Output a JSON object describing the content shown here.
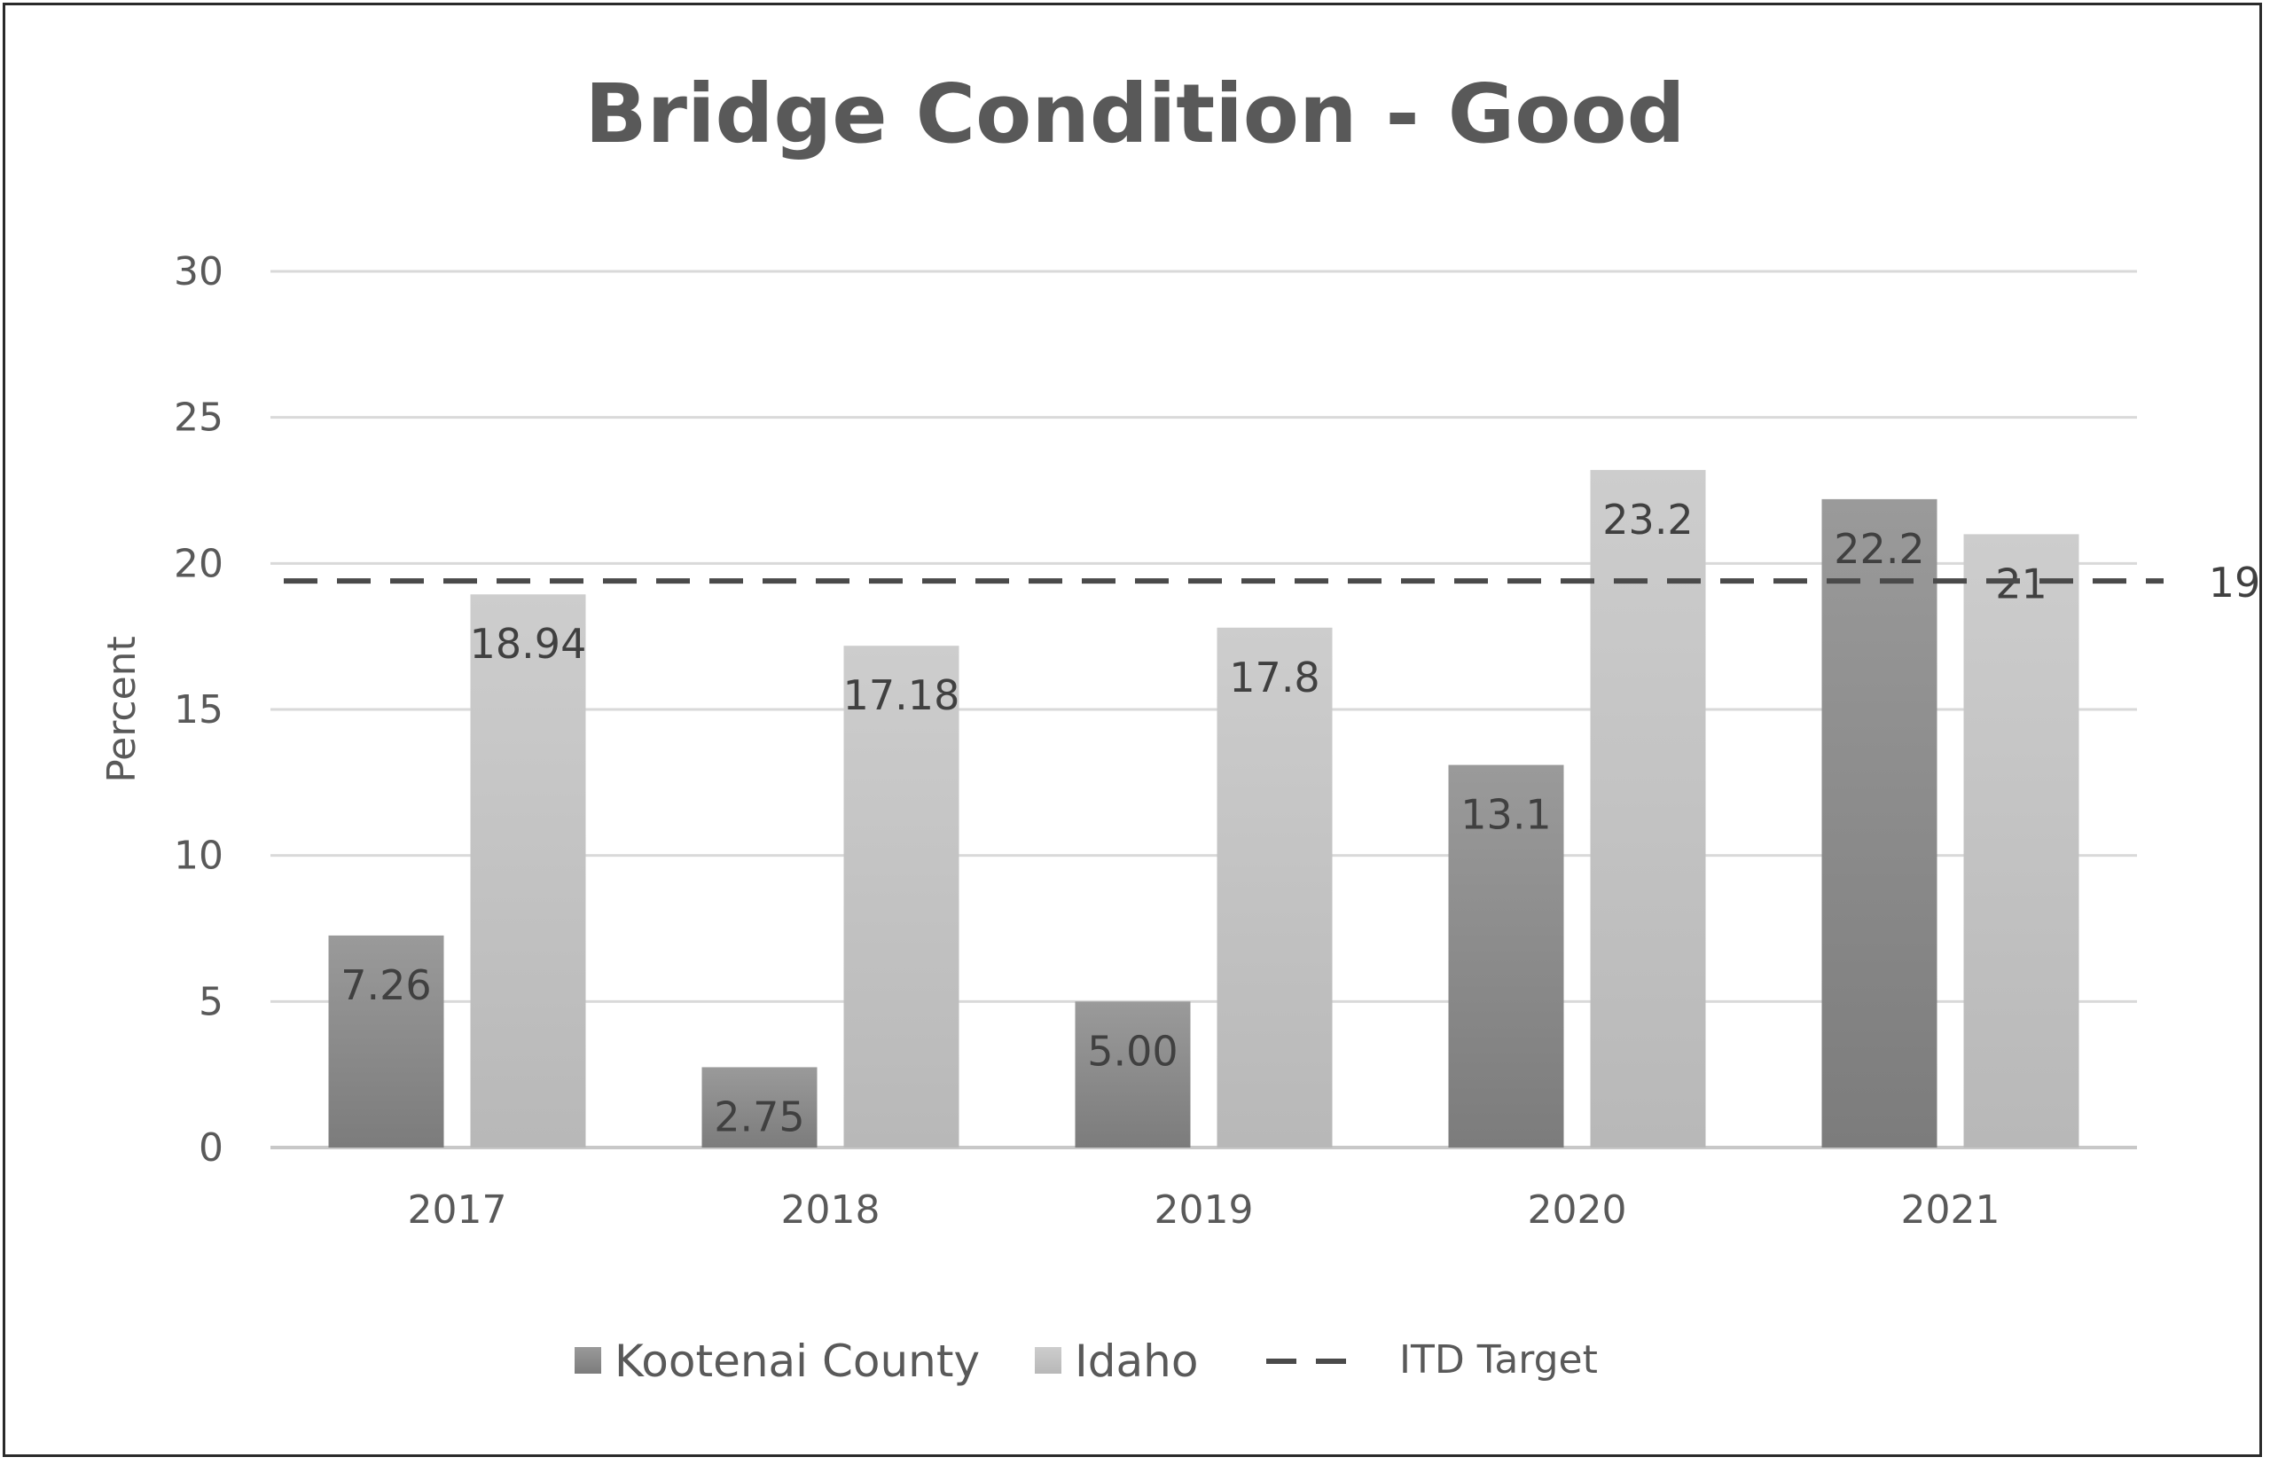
{
  "chart_data": {
    "type": "bar",
    "title": "Bridge Condition - Good",
    "ylabel": "Percent",
    "xlabel": "",
    "categories": [
      "2017",
      "2018",
      "2019",
      "2020",
      "2021"
    ],
    "ylim": [
      0,
      30
    ],
    "yticks": [
      0,
      5,
      10,
      15,
      20,
      25,
      30
    ],
    "grid": true,
    "legend_position": "bottom",
    "series": [
      {
        "name": "Kootenai County",
        "values": [
          7.26,
          2.75,
          5.0,
          13.1,
          22.2
        ],
        "labels": [
          "7.26",
          "2.75",
          "5.00",
          "13.1",
          "22.2"
        ],
        "color": "#8c8c8c"
      },
      {
        "name": "Idaho",
        "values": [
          18.94,
          17.18,
          17.8,
          23.2,
          21
        ],
        "labels": [
          "18.94",
          "17.18",
          "17.8",
          "23.2",
          "21"
        ],
        "color": "#c4c4c4"
      }
    ],
    "target": {
      "name": "ITD Target",
      "value": 19.4,
      "label": "19",
      "color": "#4a4a4a",
      "style": "dashed"
    }
  }
}
